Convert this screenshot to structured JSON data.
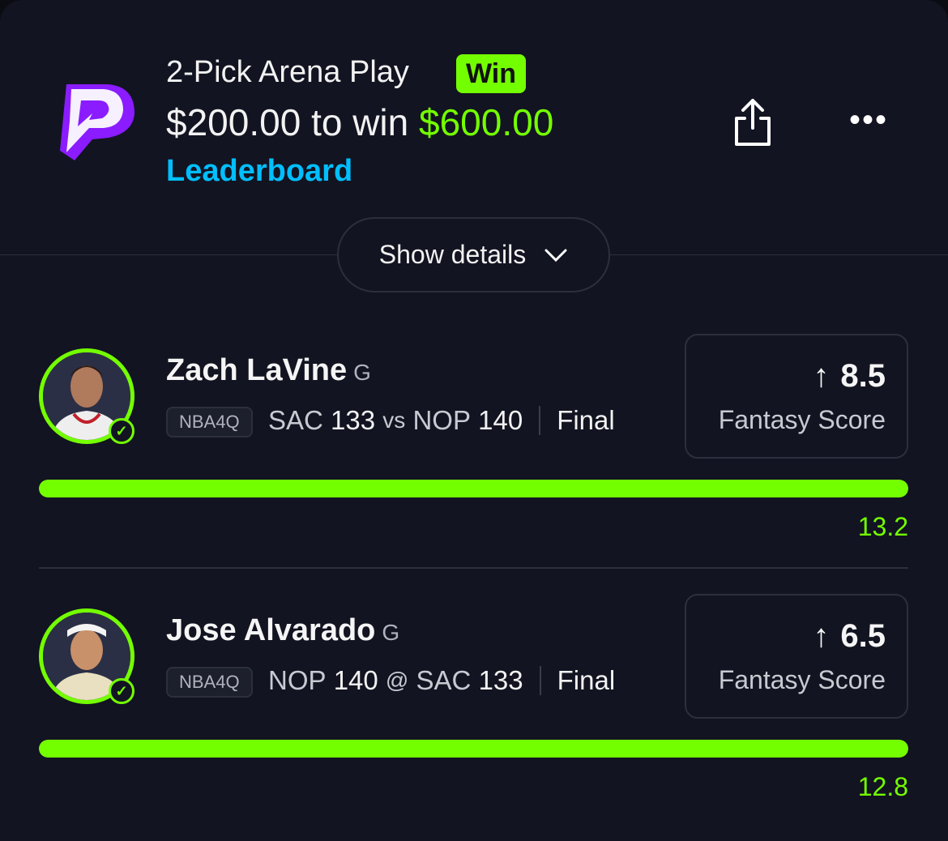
{
  "header": {
    "title": "2-Pick Arena Play",
    "status_badge": "Win",
    "entry": "$200.00",
    "to_win_label": "to win",
    "payout": "$600.00",
    "leaderboard_link": "Leaderboard"
  },
  "details_button": "Show details",
  "colors": {
    "accent": "#74ff00",
    "link": "#00bfff",
    "brand": "#8a1cff",
    "background": "#121421"
  },
  "picks": [
    {
      "player": "Zach LaVine",
      "position": "G",
      "league": "NBA4Q",
      "team1": "SAC",
      "score1": "133",
      "connector": "vs",
      "team2": "NOP",
      "score2": "140",
      "status": "Final",
      "direction": "more",
      "line": "8.5",
      "stat": "Fantasy Score",
      "actual": "13.2",
      "progress_percent": 100
    },
    {
      "player": "Jose Alvarado",
      "position": "G",
      "league": "NBA4Q",
      "team1": "NOP",
      "score1": "140",
      "connector": "@",
      "team2": "SAC",
      "score2": "133",
      "status": "Final",
      "direction": "more",
      "line": "6.5",
      "stat": "Fantasy Score",
      "actual": "12.8",
      "progress_percent": 100
    }
  ]
}
